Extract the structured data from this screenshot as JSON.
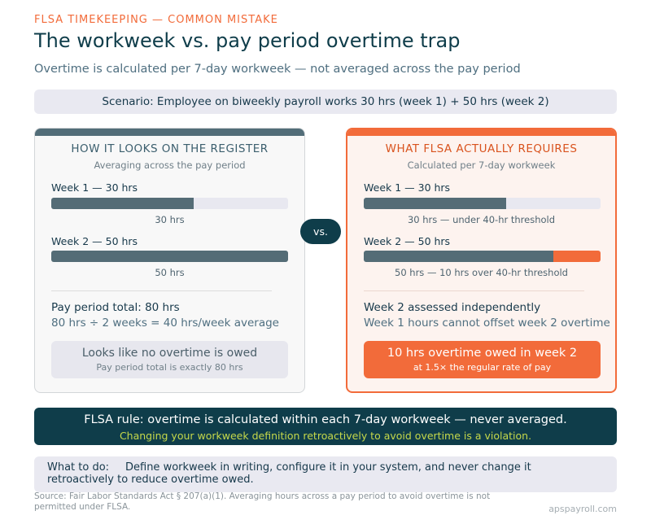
{
  "header": {
    "eyebrow": "FLSA TIMEKEEPING — COMMON MISTAKE",
    "title": "The workweek vs. pay period overtime trap",
    "subtitle": "Overtime is calculated per 7-day workweek — not averaged across the pay period"
  },
  "scenario": "Scenario: Employee on biweekly payroll works 30 hrs (week 1) + 50 hrs (week 2)",
  "left": {
    "heading": "HOW IT LOOKS ON THE REGISTER",
    "subheading": "Averaging across the pay period",
    "weeks": [
      {
        "label": "Week 1 — 30 hrs",
        "hours": 30,
        "caption": "30 hrs"
      },
      {
        "label": "Week 2 — 50 hrs",
        "hours": 50,
        "caption": "50 hrs"
      }
    ],
    "summary_strong": "Pay period total: 80 hrs",
    "summary_light": "80 hrs ÷ 2 weeks = 40 hrs/week average",
    "verdict_main": "Looks like no overtime is owed",
    "verdict_small": "Pay period total is exactly 80 hrs"
  },
  "vs_label": "vs.",
  "right": {
    "heading": "WHAT FLSA ACTUALLY REQUIRES",
    "subheading": "Calculated per 7-day workweek",
    "threshold_hours": 40,
    "weeks": [
      {
        "label": "Week 1 — 30 hrs",
        "hours": 30,
        "caption": "30 hrs — under 40-hr threshold"
      },
      {
        "label": "Week 2 — 50 hrs",
        "hours": 50,
        "caption": "50 hrs — 10 hrs over 40-hr threshold"
      }
    ],
    "summary_strong": "Week 2 assessed independently",
    "summary_light": "Week 1 hours cannot offset week 2 overtime",
    "verdict_main": "10 hrs overtime owed in week 2",
    "verdict_small": "at 1.5× the regular rate of pay"
  },
  "rule": {
    "main": "FLSA rule: overtime is calculated within each 7-day workweek — never averaged.",
    "note": "Changing your workweek definition retroactively to avoid overtime is a violation."
  },
  "todo": {
    "label": "What to do:",
    "text": "Define workweek in writing, configure it in your system, and never change it retroactively to reduce overtime owed."
  },
  "source": "Source: Fair Labor Standards Act § 207(a)(1). Averaging hours across a pay period to avoid overtime is not permitted under FLSA.",
  "brand": "apspayroll.com",
  "colors": {
    "accent": "#f26b3a",
    "navy": "#0f3d4a",
    "bar": "#546c76",
    "rule_note": "#c5d84a"
  }
}
